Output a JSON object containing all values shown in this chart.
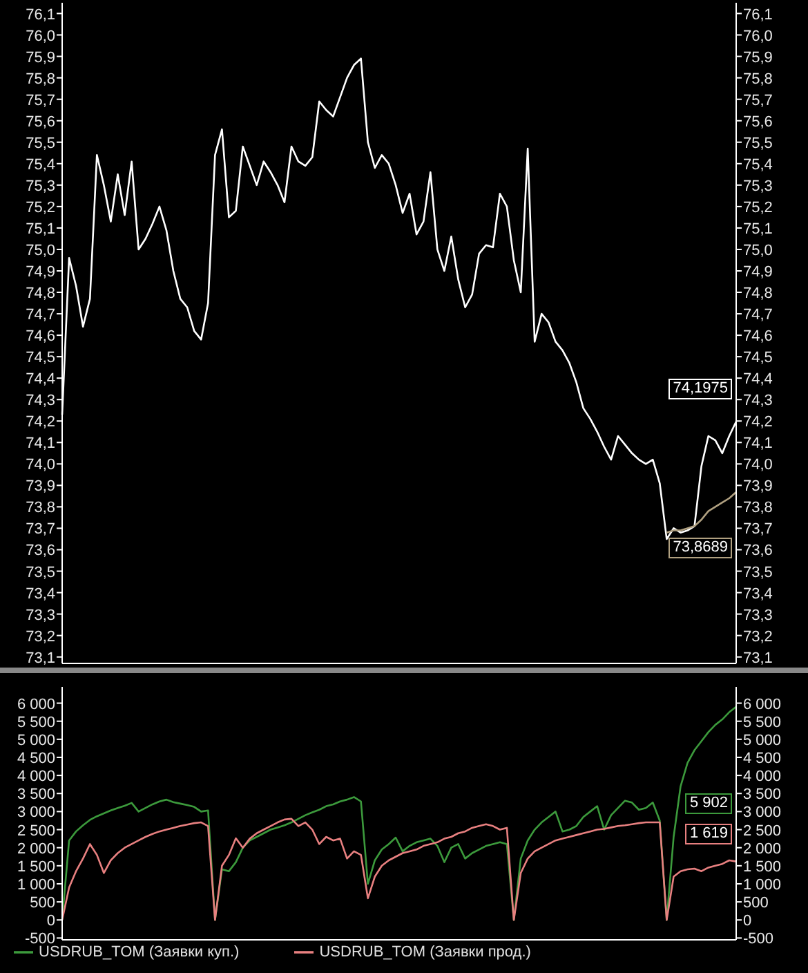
{
  "chart_data": [
    {
      "type": "line",
      "categories": [
        null,
        null,
        null,
        null,
        null,
        null,
        null,
        null,
        null,
        null,
        null,
        null,
        null,
        null,
        null,
        null,
        null,
        null,
        null,
        null,
        null,
        null,
        null,
        null,
        null,
        null,
        null,
        null,
        null,
        null,
        null,
        null,
        null,
        null,
        null,
        null,
        null,
        null,
        null,
        null,
        null,
        null,
        null,
        null,
        null,
        null,
        null,
        null,
        null,
        null,
        null,
        null,
        null,
        null,
        null,
        null,
        null,
        null,
        null,
        null,
        null,
        null,
        null,
        null,
        null,
        null,
        null,
        null,
        null,
        null,
        null,
        null,
        null,
        null,
        null,
        null,
        null,
        null,
        null,
        null,
        null,
        null,
        null,
        null,
        null,
        null,
        null,
        null,
        null,
        null,
        null,
        null,
        null,
        null,
        null,
        null,
        null,
        null
      ],
      "series": [
        {
          "color": "#ffffff",
          "values": [
            74.23,
            74.96,
            74.83,
            74.64,
            74.77,
            75.44,
            75.3,
            75.13,
            75.35,
            75.16,
            75.41,
            75.0,
            75.05,
            75.12,
            75.2,
            75.09,
            74.9,
            74.77,
            74.73,
            74.62,
            74.58,
            74.75,
            75.44,
            75.56,
            75.15,
            75.18,
            75.48,
            75.39,
            75.3,
            75.41,
            75.36,
            75.3,
            75.22,
            75.48,
            75.41,
            75.39,
            75.43,
            75.69,
            75.65,
            75.62,
            75.71,
            75.8,
            75.86,
            75.89,
            75.5,
            75.38,
            75.44,
            75.4,
            75.3,
            75.17,
            75.26,
            75.07,
            75.13,
            75.36,
            75.0,
            74.9,
            75.06,
            74.86,
            74.73,
            74.79,
            74.98,
            75.02,
            75.01,
            75.26,
            75.2,
            74.95,
            74.8,
            75.47,
            74.57,
            74.7,
            74.66,
            74.57,
            74.53,
            74.47,
            74.38,
            74.26,
            74.21,
            74.15,
            74.08,
            74.02,
            74.13,
            74.09,
            74.05,
            74.02,
            74.0,
            74.02,
            73.91,
            73.65,
            73.7,
            73.68,
            73.69,
            73.71,
            73.99,
            74.13,
            74.11,
            74.05,
            74.13,
            74.1975
          ]
        },
        {
          "color": "#b0a080",
          "values": [
            null,
            null,
            null,
            null,
            null,
            null,
            null,
            null,
            null,
            null,
            null,
            null,
            null,
            null,
            null,
            null,
            null,
            null,
            null,
            null,
            null,
            null,
            null,
            null,
            null,
            null,
            null,
            null,
            null,
            null,
            null,
            null,
            null,
            null,
            null,
            null,
            null,
            null,
            null,
            null,
            null,
            null,
            null,
            null,
            null,
            null,
            null,
            null,
            null,
            null,
            null,
            null,
            null,
            null,
            null,
            null,
            null,
            null,
            null,
            null,
            null,
            null,
            null,
            null,
            null,
            null,
            null,
            null,
            null,
            null,
            null,
            null,
            null,
            null,
            null,
            null,
            null,
            null,
            null,
            null,
            null,
            null,
            null,
            null,
            null,
            null,
            null,
            73.68,
            73.69,
            73.69,
            73.7,
            73.71,
            73.74,
            73.78,
            73.8,
            73.82,
            73.84,
            73.8689
          ]
        }
      ],
      "ylim": [
        73.07,
        76.15
      ],
      "yticks": [
        {
          "value": 73.1,
          "label": "73,1"
        },
        {
          "value": 73.2,
          "label": "73,2"
        },
        {
          "value": 73.3,
          "label": "73,3"
        },
        {
          "value": 73.4,
          "label": "73,4"
        },
        {
          "value": 73.5,
          "label": "73,5"
        },
        {
          "value": 73.6,
          "label": "73,6"
        },
        {
          "value": 73.7,
          "label": "73,7"
        },
        {
          "value": 73.8,
          "label": "73,8"
        },
        {
          "value": 73.9,
          "label": "73,9"
        },
        {
          "value": 74.0,
          "label": "74,0"
        },
        {
          "value": 74.1,
          "label": "74,1"
        },
        {
          "value": 74.2,
          "label": "74,2"
        },
        {
          "value": 74.3,
          "label": "74,3"
        },
        {
          "value": 74.4,
          "label": "74,4"
        },
        {
          "value": 74.5,
          "label": "74,5"
        },
        {
          "value": 74.6,
          "label": "74,6"
        },
        {
          "value": 74.7,
          "label": "74,7"
        },
        {
          "value": 74.8,
          "label": "74,8"
        },
        {
          "value": 74.9,
          "label": "74,9"
        },
        {
          "value": 75.0,
          "label": "75,0"
        },
        {
          "value": 75.1,
          "label": "75,1"
        },
        {
          "value": 75.2,
          "label": "75,2"
        },
        {
          "value": 75.3,
          "label": "75,3"
        },
        {
          "value": 75.4,
          "label": "75,4"
        },
        {
          "value": 75.5,
          "label": "75,5"
        },
        {
          "value": 75.6,
          "label": "75,6"
        },
        {
          "value": 75.7,
          "label": "75,7"
        },
        {
          "value": 75.8,
          "label": "75,8"
        },
        {
          "value": 75.9,
          "label": "75,9"
        },
        {
          "value": 76.0,
          "label": "76,0"
        },
        {
          "value": 76.1,
          "label": "76,1"
        }
      ],
      "y2lim": [
        73.07,
        76.15
      ],
      "y2ticks": [
        {
          "value": 73.1,
          "label": "73,1"
        },
        {
          "value": 73.2,
          "label": "73,2"
        },
        {
          "value": 73.3,
          "label": "73,3"
        },
        {
          "value": 73.4,
          "label": "73,4"
        },
        {
          "value": 73.5,
          "label": "73,5"
        },
        {
          "value": 73.6,
          "label": "73,6"
        },
        {
          "value": 73.7,
          "label": "73,7"
        },
        {
          "value": 73.8,
          "label": "73,8"
        },
        {
          "value": 73.9,
          "label": "73,9"
        },
        {
          "value": 74.0,
          "label": "74,0"
        },
        {
          "value": 74.1,
          "label": "74,1"
        },
        {
          "value": 74.2,
          "label": "74,2"
        },
        {
          "value": 74.3,
          "label": "74,3"
        },
        {
          "value": 74.4,
          "label": "74,4"
        },
        {
          "value": 74.5,
          "label": "74,5"
        },
        {
          "value": 74.6,
          "label": "74,6"
        },
        {
          "value": 74.7,
          "label": "74,7"
        },
        {
          "value": 74.8,
          "label": "74,8"
        },
        {
          "value": 74.9,
          "label": "74,9"
        },
        {
          "value": 75.0,
          "label": "75,0"
        },
        {
          "value": 75.1,
          "label": "75,1"
        },
        {
          "value": 75.2,
          "label": "75,2"
        },
        {
          "value": 75.3,
          "label": "75,3"
        },
        {
          "value": 75.4,
          "label": "75,4"
        },
        {
          "value": 75.5,
          "label": "75,5"
        },
        {
          "value": 75.6,
          "label": "75,6"
        },
        {
          "value": 75.7,
          "label": "75,7"
        },
        {
          "value": 75.8,
          "label": "75,8"
        },
        {
          "value": 75.9,
          "label": "75,9"
        },
        {
          "value": 76.0,
          "label": "76,0"
        },
        {
          "value": 76.1,
          "label": "76,1"
        }
      ],
      "tick_labels": "y",
      "annotations": [
        "74,1975",
        "73,8689"
      ]
    },
    {
      "type": "line",
      "categories": [
        null,
        null,
        null,
        null,
        null,
        null,
        null,
        null,
        null,
        null,
        null,
        null,
        null,
        null,
        null,
        null,
        null,
        null,
        null,
        null,
        null,
        null,
        null,
        null,
        null,
        null,
        null,
        null,
        null,
        null,
        null,
        null,
        null,
        null,
        null,
        null,
        null,
        null,
        null,
        null,
        null,
        null,
        null,
        null,
        null,
        null,
        null,
        null,
        null,
        null,
        null,
        null,
        null,
        null,
        null,
        null,
        null,
        null,
        null,
        null,
        null,
        null,
        null,
        null,
        null,
        null,
        null,
        null,
        null,
        null,
        null,
        null,
        null,
        null,
        null,
        null,
        null,
        null,
        null,
        null,
        null,
        null,
        null,
        null,
        null,
        null,
        null,
        null,
        null,
        null,
        null,
        null,
        null,
        null,
        null,
        null,
        null,
        null
      ],
      "series": [
        {
          "name": "USDRUB_TOM (Заявки куп.)",
          "color": "#3c9a3c",
          "values": [
            0,
            2200,
            2450,
            2620,
            2770,
            2870,
            2950,
            3030,
            3100,
            3160,
            3240,
            3000,
            3100,
            3200,
            3280,
            3330,
            3260,
            3220,
            3180,
            3130,
            3000,
            3030,
            0,
            1400,
            1350,
            1600,
            2000,
            2200,
            2300,
            2400,
            2500,
            2560,
            2620,
            2700,
            2800,
            2900,
            2980,
            3050,
            3150,
            3200,
            3280,
            3330,
            3400,
            3280,
            1000,
            1650,
            1950,
            2100,
            2280,
            1900,
            2050,
            2150,
            2200,
            2250,
            2050,
            1600,
            2000,
            2100,
            1700,
            1850,
            1950,
            2050,
            2100,
            2150,
            2100,
            0,
            1700,
            2200,
            2500,
            2700,
            2850,
            3000,
            2450,
            2500,
            2600,
            2850,
            3000,
            3150,
            2500,
            2900,
            3100,
            3300,
            3250,
            3050,
            3100,
            3250,
            2750,
            0,
            2300,
            3700,
            4350,
            4700,
            4950,
            5200,
            5400,
            5550,
            5750,
            5902
          ]
        },
        {
          "name": "USDRUB_TOM (Заявки прод.)",
          "color": "#e88080",
          "values": [
            0,
            900,
            1350,
            1700,
            2100,
            1800,
            1300,
            1650,
            1850,
            2000,
            2100,
            2200,
            2300,
            2380,
            2450,
            2500,
            2550,
            2600,
            2640,
            2680,
            2700,
            2600,
            0,
            1500,
            1800,
            2260,
            2000,
            2250,
            2400,
            2500,
            2600,
            2700,
            2780,
            2800,
            2600,
            2700,
            2500,
            2100,
            2300,
            2200,
            2250,
            1700,
            1900,
            1800,
            600,
            1200,
            1500,
            1650,
            1750,
            1850,
            1900,
            1950,
            2050,
            2100,
            2150,
            2250,
            2300,
            2400,
            2450,
            2550,
            2600,
            2650,
            2600,
            2500,
            2550,
            0,
            1300,
            1700,
            1900,
            2000,
            2100,
            2200,
            2250,
            2300,
            2350,
            2400,
            2450,
            2500,
            2520,
            2560,
            2600,
            2620,
            2650,
            2680,
            2700,
            2700,
            2700,
            0,
            1200,
            1350,
            1400,
            1420,
            1350,
            1450,
            1500,
            1550,
            1650,
            1619
          ]
        }
      ],
      "ylim": [
        -550,
        6450
      ],
      "yticks": [
        {
          "value": -500,
          "label": "-500"
        },
        0,
        500,
        {
          "value": 1000,
          "label": "1 000"
        },
        {
          "value": 1500,
          "label": "1 500"
        },
        {
          "value": 2000,
          "label": "2 000"
        },
        {
          "value": 2500,
          "label": "2 500"
        },
        {
          "value": 3000,
          "label": "3 000"
        },
        {
          "value": 3500,
          "label": "3 500"
        },
        {
          "value": 4000,
          "label": "4 000"
        },
        {
          "value": 4500,
          "label": "4 500"
        },
        {
          "value": 5000,
          "label": "5 000"
        },
        {
          "value": 5500,
          "label": "5 500"
        },
        {
          "value": 6000,
          "label": "6 000"
        }
      ],
      "y2lim": [
        -550,
        6450
      ],
      "y2ticks": [
        {
          "value": -500,
          "label": "-500"
        },
        0,
        500,
        {
          "value": 1000,
          "label": "1 000"
        },
        {
          "value": 1500,
          "label": "1 500"
        },
        {
          "value": 2000,
          "label": "2 000"
        },
        {
          "value": 2500,
          "label": "2 500"
        },
        {
          "value": 3000,
          "label": "3 000"
        },
        {
          "value": 3500,
          "label": "3 500"
        },
        {
          "value": 4000,
          "label": "4 000"
        },
        {
          "value": 4500,
          "label": "4 500"
        },
        {
          "value": 5000,
          "label": "5 000"
        },
        {
          "value": 5500,
          "label": "5 500"
        },
        {
          "value": 6000,
          "label": "6 000"
        }
      ],
      "tick_labels": "y",
      "legend": "bottom",
      "annotations": [
        "5 902",
        "1 619"
      ]
    }
  ]
}
